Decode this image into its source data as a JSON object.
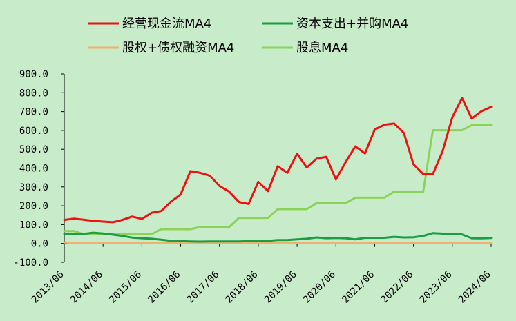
{
  "chart_data": {
    "type": "line",
    "title": "",
    "xlabel": "",
    "ylabel": "",
    "ylim": [
      -100,
      900
    ],
    "yticks": [
      "900.0",
      "800.0",
      "700.0",
      "600.0",
      "500.0",
      "400.0",
      "300.0",
      "200.0",
      "100.0",
      "0.0",
      "-100.0"
    ],
    "xticks": [
      "2013/06",
      "2014/06",
      "2015/06",
      "2016/06",
      "2017/06",
      "2018/06",
      "2019/06",
      "2020/06",
      "2021/06",
      "2022/06",
      "2023/06",
      "2024/06"
    ],
    "legend_position": "top",
    "grid": false,
    "series": [
      {
        "name": "经营现金流MA4",
        "color": "#ee1111",
        "values": [
          125,
          132,
          126,
          120,
          116,
          113,
          125,
          143,
          130,
          163,
          172,
          222,
          260,
          384,
          375,
          360,
          305,
          275,
          220,
          210,
          327,
          278,
          410,
          375,
          477,
          403,
          450,
          460,
          340,
          432,
          515,
          478,
          605,
          630,
          637,
          587,
          420,
          368,
          368,
          490,
          670,
          772,
          663,
          702,
          725
        ]
      },
      {
        "name": "资本支出+并购MA4",
        "color": "#1a9e44",
        "values": [
          51,
          51,
          51,
          57,
          53,
          47,
          40,
          31,
          28,
          25,
          20,
          14,
          13,
          11,
          10,
          11,
          11,
          11,
          11,
          13,
          14,
          14,
          18,
          18,
          22,
          25,
          32,
          28,
          29,
          28,
          22,
          30,
          30,
          30,
          35,
          32,
          33,
          40,
          55,
          52,
          51,
          48,
          28,
          27,
          29
        ]
      },
      {
        "name": "股权+债权融资MA4",
        "color": "#f0b070",
        "values": [
          5,
          3,
          2,
          1,
          1,
          1,
          2,
          2,
          2,
          1,
          1,
          1,
          1,
          1,
          1,
          1,
          1,
          1,
          1,
          1,
          1,
          1,
          2,
          2,
          2,
          1,
          1,
          1,
          1,
          1,
          1,
          1,
          1,
          1,
          1,
          1,
          1,
          1,
          1,
          1,
          1,
          1,
          1,
          1,
          1
        ]
      },
      {
        "name": "股息MA4",
        "color": "#8cd25a",
        "values": [
          66,
          66,
          49,
          49,
          49,
          49,
          49,
          49,
          49,
          49,
          76,
          76,
          76,
          76,
          87,
          87,
          87,
          87,
          136,
          136,
          136,
          136,
          182,
          182,
          182,
          182,
          214,
          214,
          214,
          214,
          243,
          243,
          243,
          243,
          275,
          275,
          275,
          275,
          601,
          601,
          601,
          601,
          628,
          628,
          628
        ]
      }
    ]
  }
}
